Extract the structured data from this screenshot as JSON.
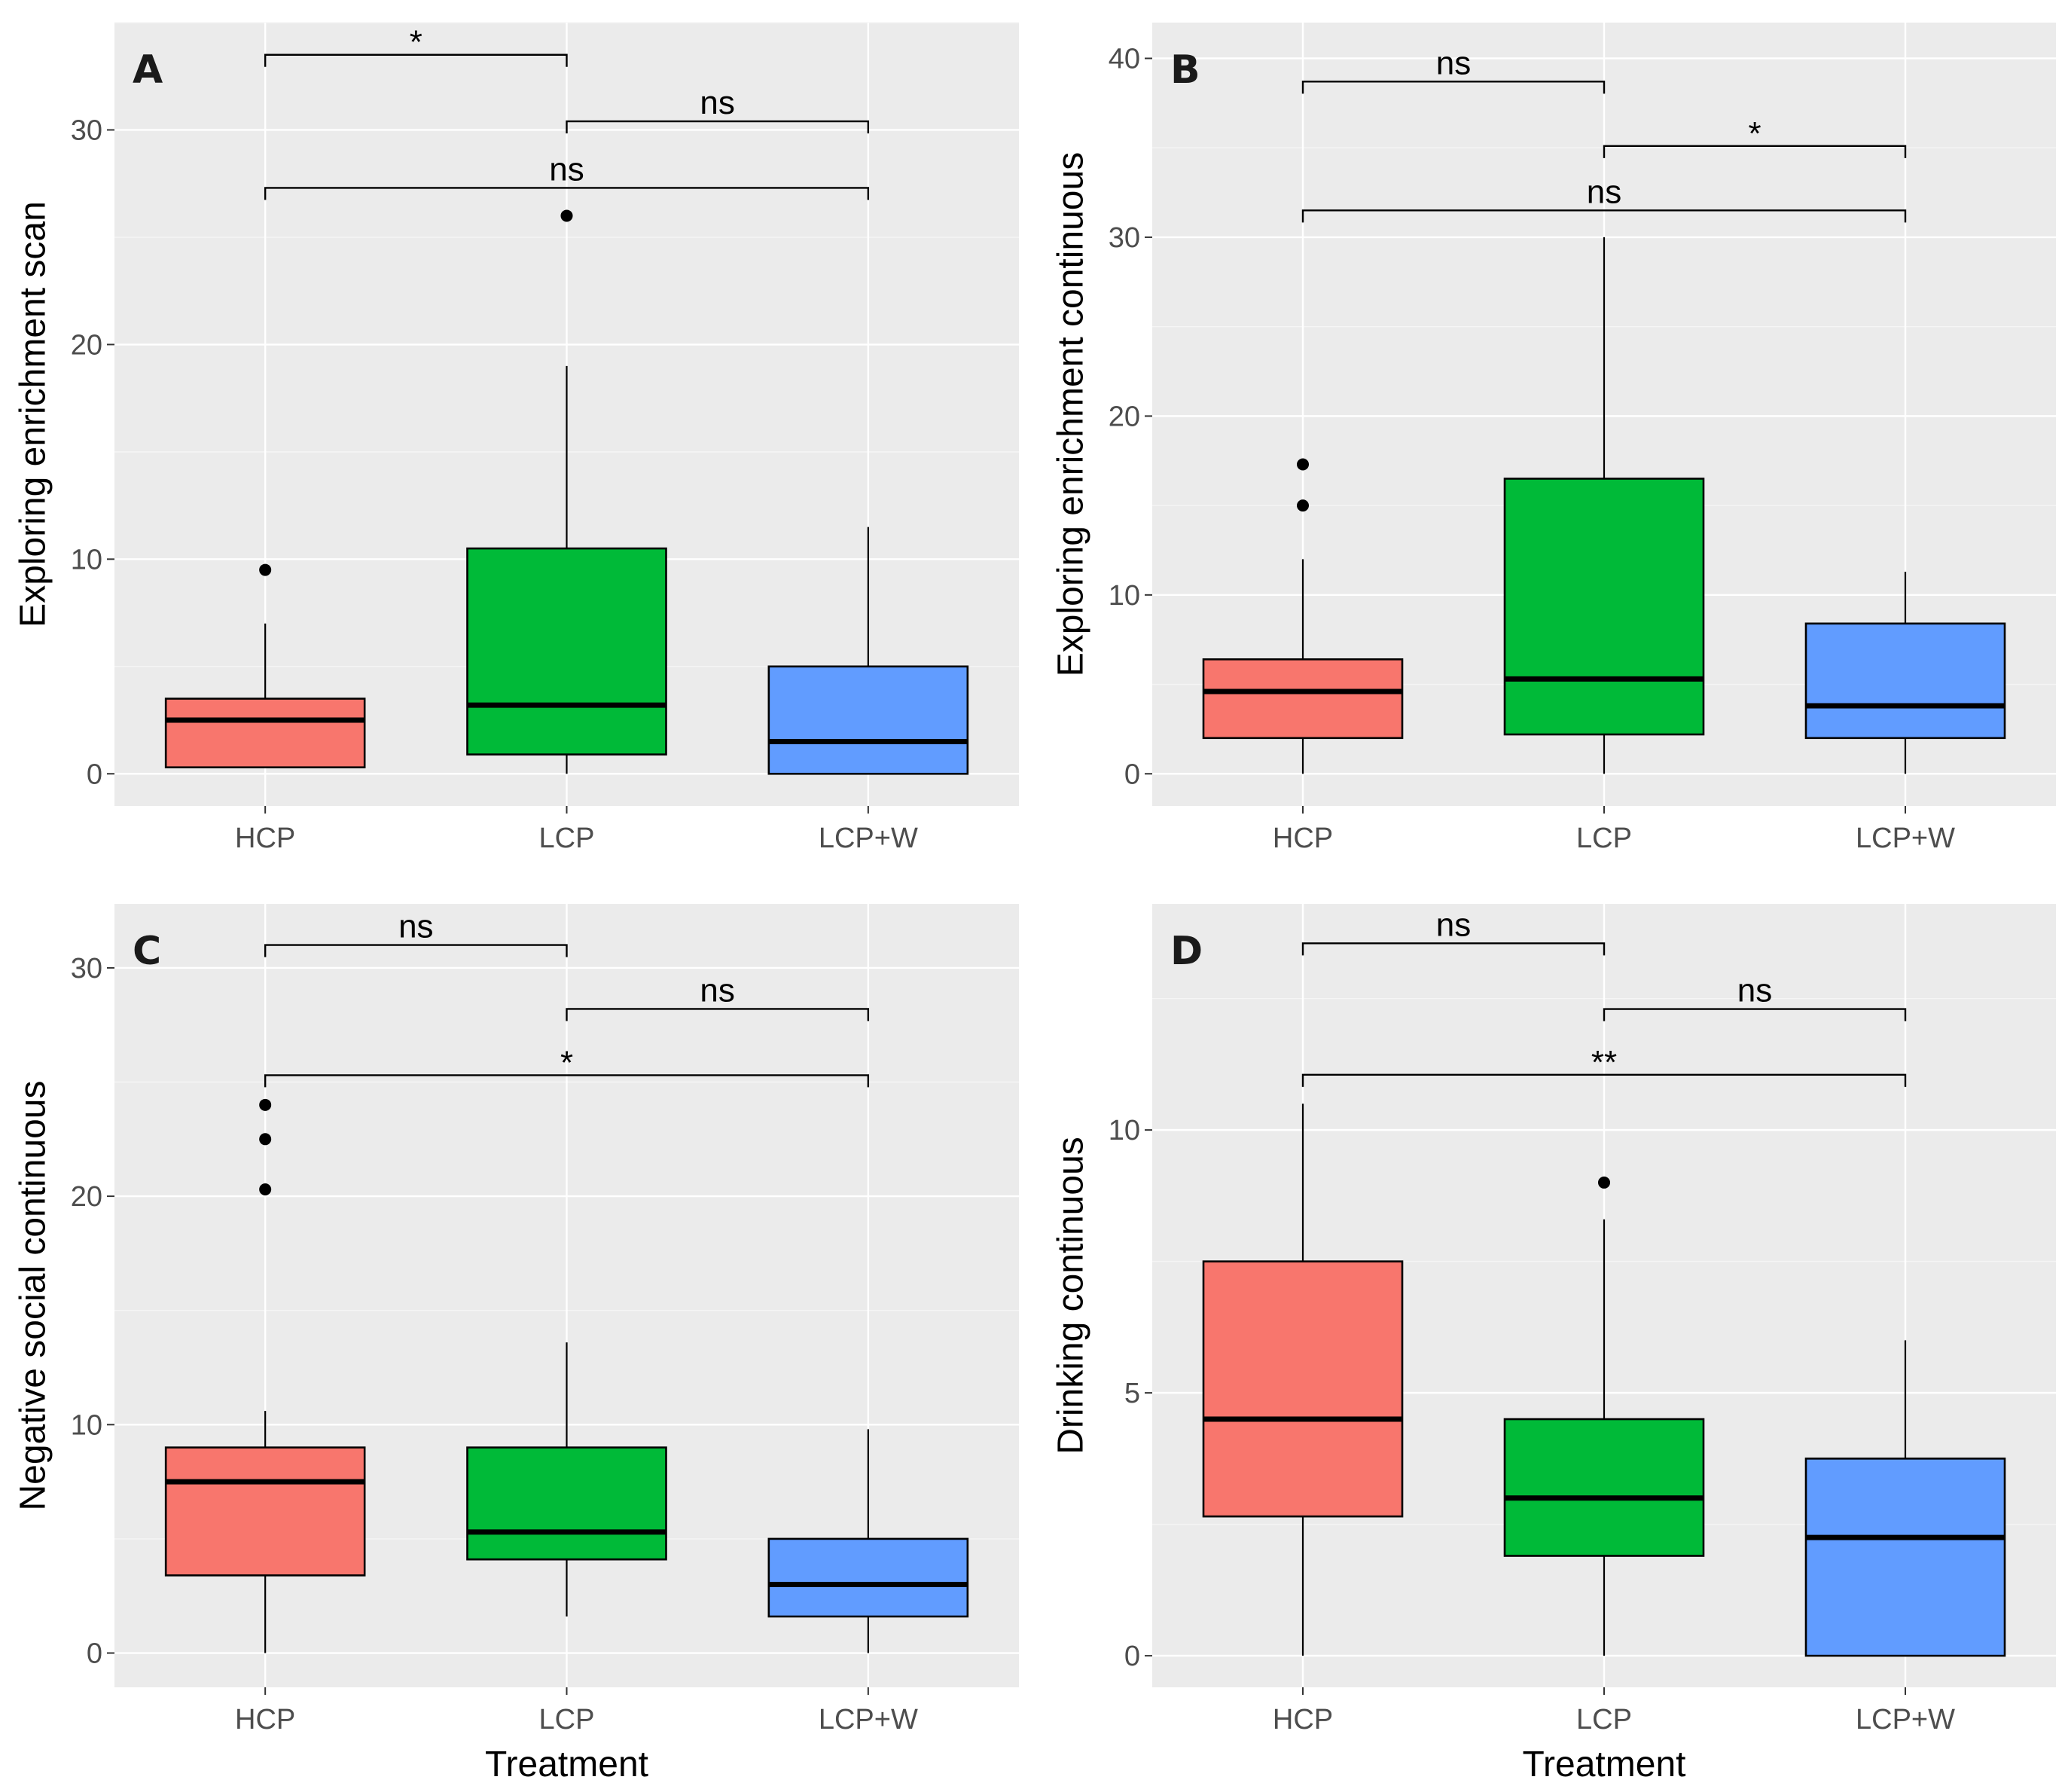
{
  "chart_data": [
    {
      "type": "boxplot",
      "panel": "A",
      "xlabel": "",
      "ylabel": "Exploring enrichment scan",
      "categories": [
        "HCP",
        "LCP",
        "LCP+W"
      ],
      "colors": [
        "#F8766D",
        "#00BA38",
        "#619CFF"
      ],
      "ylim": [
        -1.5,
        35
      ],
      "y_ticks": [
        0,
        10,
        20,
        30
      ],
      "boxes": [
        {
          "category": "HCP",
          "whisker_low": 0.3,
          "q1": 0.3,
          "median": 2.5,
          "q3": 3.5,
          "whisker_high": 7.0,
          "outliers": [
            9.5
          ]
        },
        {
          "category": "LCP",
          "whisker_low": 0.0,
          "q1": 0.9,
          "median": 3.2,
          "q3": 10.5,
          "whisker_high": 19.0,
          "outliers": [
            26.0
          ]
        },
        {
          "category": "LCP+W",
          "whisker_low": 0.0,
          "q1": 0.0,
          "median": 1.5,
          "q3": 5.0,
          "whisker_high": 11.5,
          "outliers": []
        }
      ],
      "comparisons": [
        {
          "from": "HCP",
          "to": "LCP",
          "y": 33.5,
          "label": "*"
        },
        {
          "from": "LCP",
          "to": "LCP+W",
          "y": 30.4,
          "label": "ns"
        },
        {
          "from": "HCP",
          "to": "LCP+W",
          "y": 27.3,
          "label": "ns"
        }
      ]
    },
    {
      "type": "boxplot",
      "panel": "B",
      "xlabel": "",
      "ylabel": "Exploring enrichment continuous",
      "categories": [
        "HCP",
        "LCP",
        "LCP+W"
      ],
      "colors": [
        "#F8766D",
        "#00BA38",
        "#619CFF"
      ],
      "ylim": [
        -1.8,
        42
      ],
      "y_ticks": [
        0,
        10,
        20,
        30,
        40
      ],
      "boxes": [
        {
          "category": "HCP",
          "whisker_low": 0.0,
          "q1": 2.0,
          "median": 4.6,
          "q3": 6.4,
          "whisker_high": 12.0,
          "outliers": [
            15.0,
            17.3
          ]
        },
        {
          "category": "LCP",
          "whisker_low": 0.0,
          "q1": 2.2,
          "median": 5.3,
          "q3": 16.5,
          "whisker_high": 30.0,
          "outliers": []
        },
        {
          "category": "LCP+W",
          "whisker_low": 0.0,
          "q1": 2.0,
          "median": 3.8,
          "q3": 8.4,
          "whisker_high": 11.3,
          "outliers": []
        }
      ],
      "comparisons": [
        {
          "from": "HCP",
          "to": "LCP",
          "y": 38.7,
          "label": "ns"
        },
        {
          "from": "LCP",
          "to": "LCP+W",
          "y": 35.1,
          "label": "*"
        },
        {
          "from": "HCP",
          "to": "LCP+W",
          "y": 31.5,
          "label": "ns"
        }
      ]
    },
    {
      "type": "boxplot",
      "panel": "C",
      "xlabel": "Treatment",
      "ylabel": "Negative social continuous",
      "categories": [
        "HCP",
        "LCP",
        "LCP+W"
      ],
      "colors": [
        "#F8766D",
        "#00BA38",
        "#619CFF"
      ],
      "ylim": [
        -1.5,
        32.8
      ],
      "y_ticks": [
        0,
        10,
        20,
        30
      ],
      "boxes": [
        {
          "category": "HCP",
          "whisker_low": 0.0,
          "q1": 3.4,
          "median": 7.5,
          "q3": 9.0,
          "whisker_high": 10.6,
          "outliers": [
            20.3,
            22.5,
            24.0
          ]
        },
        {
          "category": "LCP",
          "whisker_low": 1.6,
          "q1": 4.1,
          "median": 5.3,
          "q3": 9.0,
          "whisker_high": 13.6,
          "outliers": []
        },
        {
          "category": "LCP+W",
          "whisker_low": 0.0,
          "q1": 1.6,
          "median": 3.0,
          "q3": 5.0,
          "whisker_high": 9.8,
          "outliers": []
        }
      ],
      "comparisons": [
        {
          "from": "HCP",
          "to": "LCP",
          "y": 31.0,
          "label": "ns"
        },
        {
          "from": "LCP",
          "to": "LCP+W",
          "y": 28.2,
          "label": "ns"
        },
        {
          "from": "HCP",
          "to": "LCP+W",
          "y": 25.3,
          "label": "*"
        }
      ]
    },
    {
      "type": "boxplot",
      "panel": "D",
      "xlabel": "Treatment",
      "ylabel": "Drinking continuous",
      "categories": [
        "HCP",
        "LCP",
        "LCP+W"
      ],
      "colors": [
        "#F8766D",
        "#00BA38",
        "#619CFF"
      ],
      "ylim": [
        -0.6,
        14.3
      ],
      "y_ticks": [
        0,
        5,
        10
      ],
      "boxes": [
        {
          "category": "HCP",
          "whisker_low": 0.0,
          "q1": 2.65,
          "median": 4.5,
          "q3": 7.5,
          "whisker_high": 10.5,
          "outliers": []
        },
        {
          "category": "LCP",
          "whisker_low": 0.0,
          "q1": 1.9,
          "median": 3.0,
          "q3": 4.5,
          "whisker_high": 8.3,
          "outliers": [
            9.0
          ]
        },
        {
          "category": "LCP+W",
          "whisker_low": 0.0,
          "q1": 0.0,
          "median": 2.25,
          "q3": 3.75,
          "whisker_high": 6.0,
          "outliers": []
        }
      ],
      "comparisons": [
        {
          "from": "HCP",
          "to": "LCP",
          "y": 13.55,
          "label": "ns"
        },
        {
          "from": "LCP",
          "to": "LCP+W",
          "y": 12.3,
          "label": "ns"
        },
        {
          "from": "HCP",
          "to": "LCP+W",
          "y": 11.05,
          "label": "**"
        }
      ]
    }
  ]
}
